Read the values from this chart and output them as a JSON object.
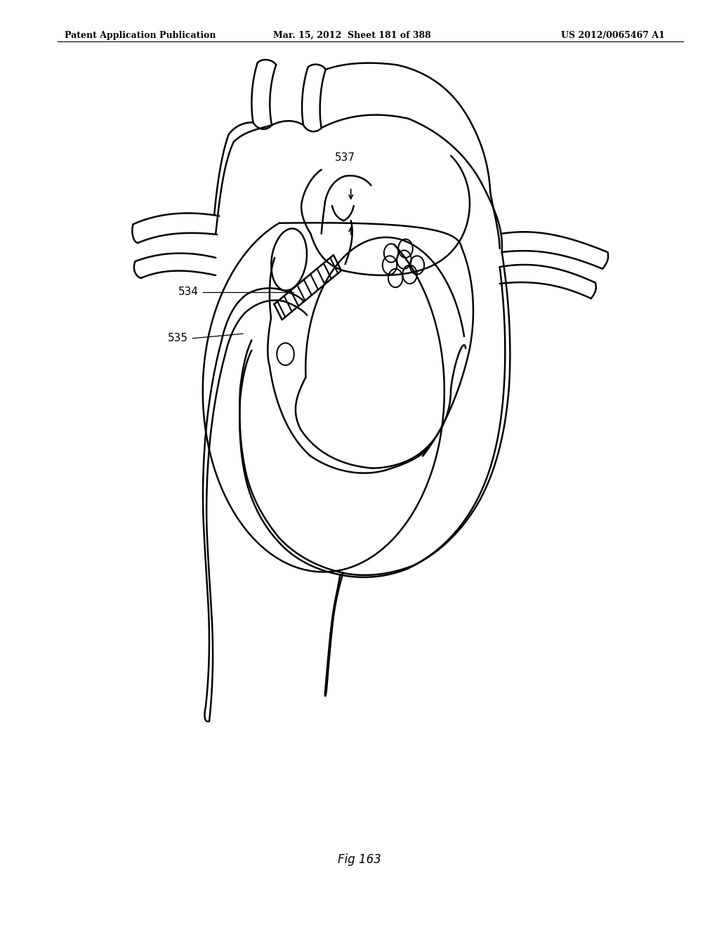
{
  "title_left": "Patent Application Publication",
  "title_mid": "Mar. 15, 2012  Sheet 181 of 388",
  "title_right": "US 2012/0065467 A1",
  "fig_label": "Fig 163",
  "background_color": "#ffffff",
  "line_color": "#000000",
  "line_width": 1.8,
  "fontsize_header": 9,
  "fontsize_label": 11,
  "fontsize_fig": 12
}
